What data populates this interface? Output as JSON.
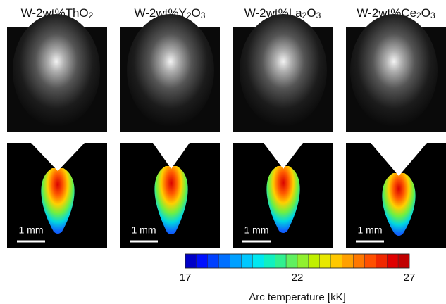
{
  "panels": [
    {
      "title": [
        {
          "text": "W-2wt%ThO"
        },
        {
          "text": "2",
          "sub": true
        }
      ],
      "scale_label": "1 mm"
    },
    {
      "title": [
        {
          "text": "W-2wt%Y"
        },
        {
          "text": "2",
          "sub": true
        },
        {
          "text": "O"
        },
        {
          "text": "3",
          "sub": true
        }
      ],
      "scale_label": "1 mm"
    },
    {
      "title": [
        {
          "text": "W-2wt%La"
        },
        {
          "text": "2",
          "sub": true
        },
        {
          "text": "O"
        },
        {
          "text": "3",
          "sub": true
        }
      ],
      "scale_label": "1 mm"
    },
    {
      "title": [
        {
          "text": "W-2wt%Ce"
        },
        {
          "text": "2",
          "sub": true
        },
        {
          "text": "O"
        },
        {
          "text": "3",
          "sub": true
        }
      ],
      "scale_label": "1 mm"
    }
  ],
  "colorbar": {
    "label": "Arc temperature [kK]",
    "lim": [
      17,
      27
    ],
    "ticks": [
      17,
      22,
      27
    ],
    "colors": [
      "#0000c8",
      "#0010ff",
      "#0040ff",
      "#0070ff",
      "#00a0ff",
      "#00c8ff",
      "#00e8f0",
      "#10f0c0",
      "#30f090",
      "#60f060",
      "#90f030",
      "#c0f000",
      "#e8e800",
      "#ffc800",
      "#ffa000",
      "#ff7800",
      "#ff5000",
      "#f02800",
      "#e00000",
      "#c00000"
    ]
  }
}
